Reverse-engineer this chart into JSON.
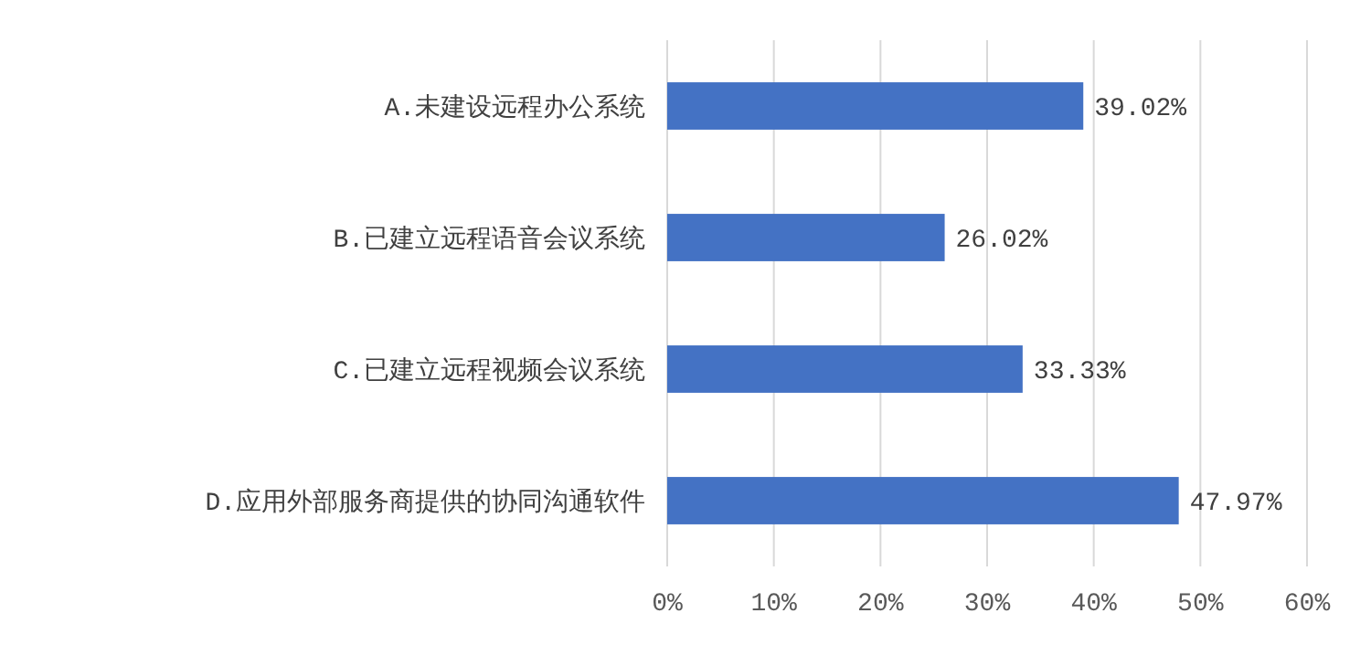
{
  "chart_data": {
    "type": "bar",
    "orientation": "horizontal",
    "categories": [
      "A.未建设远程办公系统",
      "B.已建立远程语音会议系统",
      "C.已建立远程视频会议系统",
      "D.应用外部服务商提供的协同沟通软件"
    ],
    "values": [
      39.02,
      26.02,
      33.33,
      47.97
    ],
    "value_labels": [
      "39.02%",
      "26.02%",
      "33.33%",
      "47.97%"
    ],
    "color": "#4472c4",
    "xlim": [
      0,
      60
    ],
    "xticks": [
      {
        "value": 0,
        "label": "0%"
      },
      {
        "value": 10,
        "label": "10%"
      },
      {
        "value": 20,
        "label": "20%"
      },
      {
        "value": 30,
        "label": "30%"
      },
      {
        "value": 40,
        "label": "40%"
      },
      {
        "value": 50,
        "label": "50%"
      },
      {
        "value": 60,
        "label": "60%"
      }
    ],
    "grid": "x"
  }
}
